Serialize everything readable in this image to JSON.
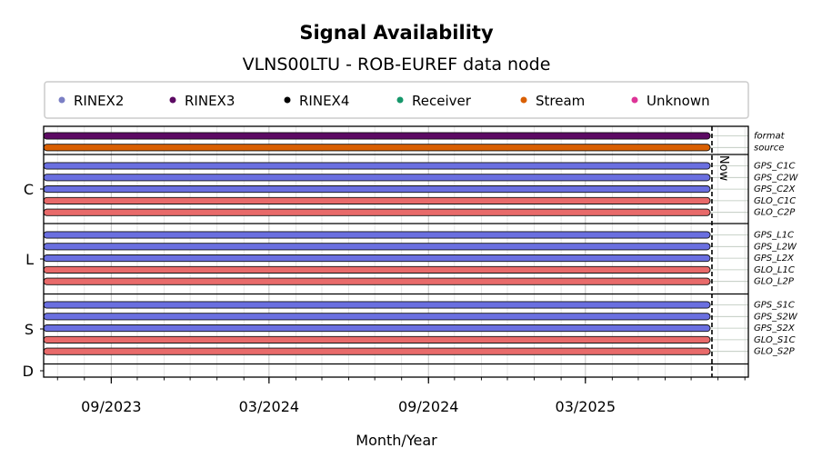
{
  "chart_data": {
    "type": "bar",
    "title": "Signal Availability",
    "subtitle": "VLNS00LTU - ROB-EUREF data node",
    "xlabel": "Month/Year",
    "x_range": [
      "2023-06-15",
      "2025-09-05"
    ],
    "x_ticks": [
      {
        "date": "2023-09-01",
        "label": "09/2023"
      },
      {
        "date": "2024-03-01",
        "label": "03/2024"
      },
      {
        "date": "2024-09-01",
        "label": "09/2024"
      },
      {
        "date": "2025-03-01",
        "label": "03/2025"
      }
    ],
    "now_date": "2025-07-25",
    "now_label": "Now",
    "legend": [
      {
        "name": "RINEX2",
        "color": "#7b7fc4"
      },
      {
        "name": "RINEX3",
        "color": "#5c0a63"
      },
      {
        "name": "RINEX4",
        "color": "#000000"
      },
      {
        "name": "Receiver",
        "color": "#16976b"
      },
      {
        "name": "Stream",
        "color": "#d95f02"
      },
      {
        "name": "Unknown",
        "color": "#dd3497"
      }
    ],
    "groups": [
      {
        "label": "",
        "rows": [
          {
            "name": "format",
            "color": "#5c0a63",
            "start": "2023-06-15",
            "end": "2025-07-23"
          },
          {
            "name": "source",
            "color": "#d95f02",
            "start": "2023-06-15",
            "end": "2025-07-23"
          }
        ]
      },
      {
        "label": "C",
        "rows": [
          {
            "name": "GPS_C1C",
            "color": "#6a6fe0",
            "start": "2023-06-15",
            "end": "2025-07-23"
          },
          {
            "name": "GPS_C2W",
            "color": "#6a6fe0",
            "start": "2023-06-15",
            "end": "2025-07-23"
          },
          {
            "name": "GPS_C2X",
            "color": "#6a6fe0",
            "start": "2023-06-15",
            "end": "2025-07-23"
          },
          {
            "name": "GLO_C1C",
            "color": "#e86a6a",
            "start": "2023-06-15",
            "end": "2025-07-23"
          },
          {
            "name": "GLO_C2P",
            "color": "#e86a6a",
            "start": "2023-06-15",
            "end": "2025-07-23"
          }
        ]
      },
      {
        "label": "L",
        "rows": [
          {
            "name": "GPS_L1C",
            "color": "#6a6fe0",
            "start": "2023-06-15",
            "end": "2025-07-23"
          },
          {
            "name": "GPS_L2W",
            "color": "#6a6fe0",
            "start": "2023-06-15",
            "end": "2025-07-23"
          },
          {
            "name": "GPS_L2X",
            "color": "#6a6fe0",
            "start": "2023-06-15",
            "end": "2025-07-23"
          },
          {
            "name": "GLO_L1C",
            "color": "#e86a6a",
            "start": "2023-06-15",
            "end": "2025-07-23"
          },
          {
            "name": "GLO_L2P",
            "color": "#e86a6a",
            "start": "2023-06-15",
            "end": "2025-07-23"
          }
        ]
      },
      {
        "label": "S",
        "rows": [
          {
            "name": "GPS_S1C",
            "color": "#6a6fe0",
            "start": "2023-06-15",
            "end": "2025-07-23"
          },
          {
            "name": "GPS_S2W",
            "color": "#6a6fe0",
            "start": "2023-06-15",
            "end": "2025-07-23"
          },
          {
            "name": "GPS_S2X",
            "color": "#6a6fe0",
            "start": "2023-06-15",
            "end": "2025-07-23"
          },
          {
            "name": "GLO_S1C",
            "color": "#e86a6a",
            "start": "2023-06-15",
            "end": "2025-07-23"
          },
          {
            "name": "GLO_S2P",
            "color": "#e86a6a",
            "start": "2023-06-15",
            "end": "2025-07-23"
          }
        ]
      },
      {
        "label": "D",
        "rows": []
      }
    ]
  }
}
